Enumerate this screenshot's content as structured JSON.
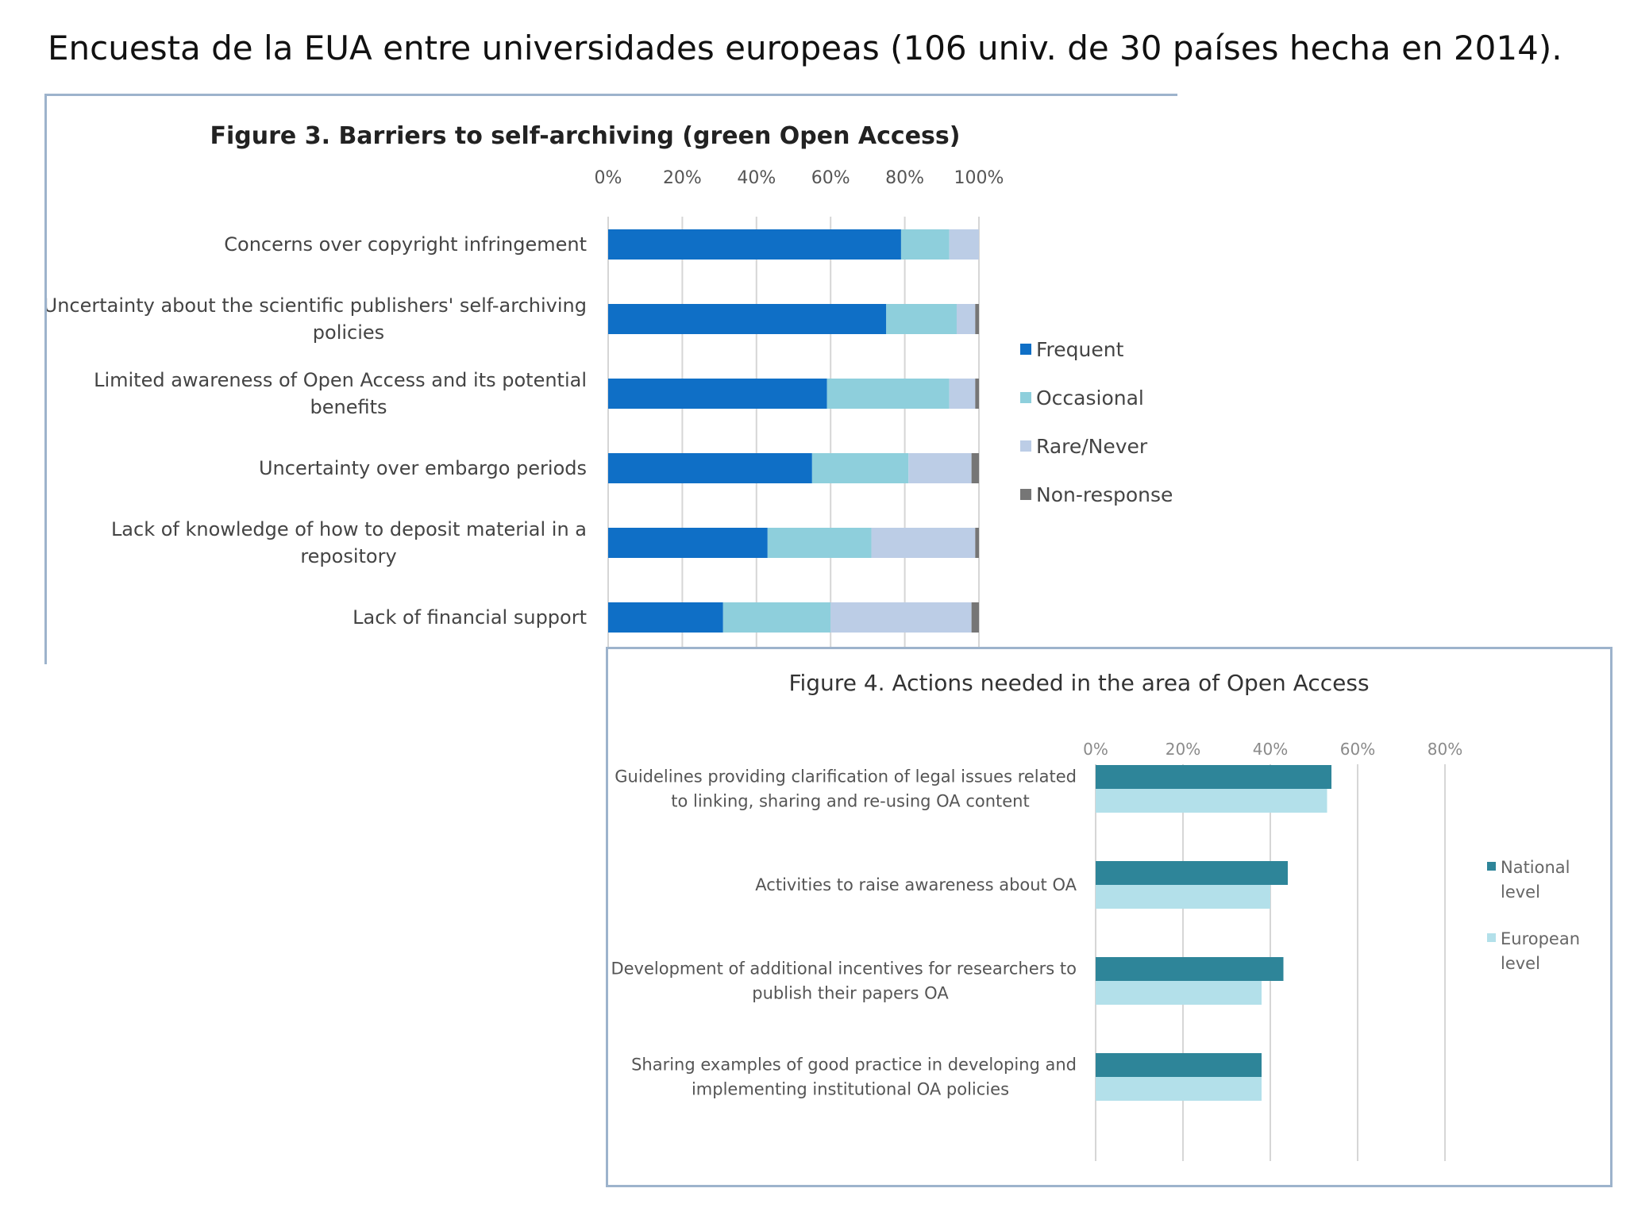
{
  "headline": "Encuesta de la EUA  entre universidades europeas (106 univ.  de 30 países hecha en 2014).",
  "chart_data": [
    {
      "type": "bar",
      "orientation": "horizontal",
      "stacked": true,
      "title": "Figure 3. Barriers to self-archiving (green Open Access)",
      "categories": [
        [
          "Concerns over copyright infringement"
        ],
        [
          "Uncertainty about the scientific publishers' self-archiving",
          "policies"
        ],
        [
          "Limited awareness of Open Access and its potential",
          "benefits"
        ],
        [
          "Uncertainty over embargo periods"
        ],
        [
          "Lack of knowledge of how to deposit material in a",
          "repository"
        ],
        [
          "Lack of financial support"
        ]
      ],
      "series": [
        {
          "name": "Frequent",
          "color": "#0f6fc6",
          "values": [
            79,
            75,
            59,
            55,
            43,
            31
          ]
        },
        {
          "name": "Occasional",
          "color": "#8ecfdc",
          "values": [
            13,
            19,
            33,
            26,
            28,
            29
          ]
        },
        {
          "name": "Rare/Never",
          "color": "#bccde6",
          "values": [
            8,
            5,
            7,
            17,
            28,
            38
          ]
        },
        {
          "name": "Non-response",
          "color": "#767676",
          "values": [
            0,
            1,
            1,
            2,
            1,
            2
          ]
        }
      ],
      "xticks": [
        "0%",
        "20%",
        "40%",
        "60%",
        "80%",
        "100%"
      ],
      "xlim": [
        0,
        100
      ],
      "legend_position": "right"
    },
    {
      "type": "bar",
      "orientation": "horizontal",
      "stacked": false,
      "title": "Figure 4. Actions needed in the area of Open Access",
      "categories": [
        [
          "Guidelines providing clarification of legal issues related",
          "to linking, sharing and re-using OA content"
        ],
        [
          "Activities to raise awareness about OA"
        ],
        [
          "Development of additional incentives for researchers to",
          "publish their papers OA"
        ],
        [
          "Sharing examples of good practice in developing and",
          "implementing institutional OA policies"
        ]
      ],
      "series": [
        {
          "name": "National level",
          "legend_lines": [
            "National",
            "level"
          ],
          "color": "#2e8599",
          "values": [
            54,
            44,
            43,
            38
          ]
        },
        {
          "name": "European level",
          "legend_lines": [
            "European",
            "level"
          ],
          "color": "#b3e0ea",
          "values": [
            53,
            40,
            38,
            38
          ]
        }
      ],
      "xticks": [
        "0%",
        "20%",
        "40%",
        "60%",
        "80%"
      ],
      "xlim": [
        0,
        80
      ],
      "legend_position": "right"
    }
  ]
}
